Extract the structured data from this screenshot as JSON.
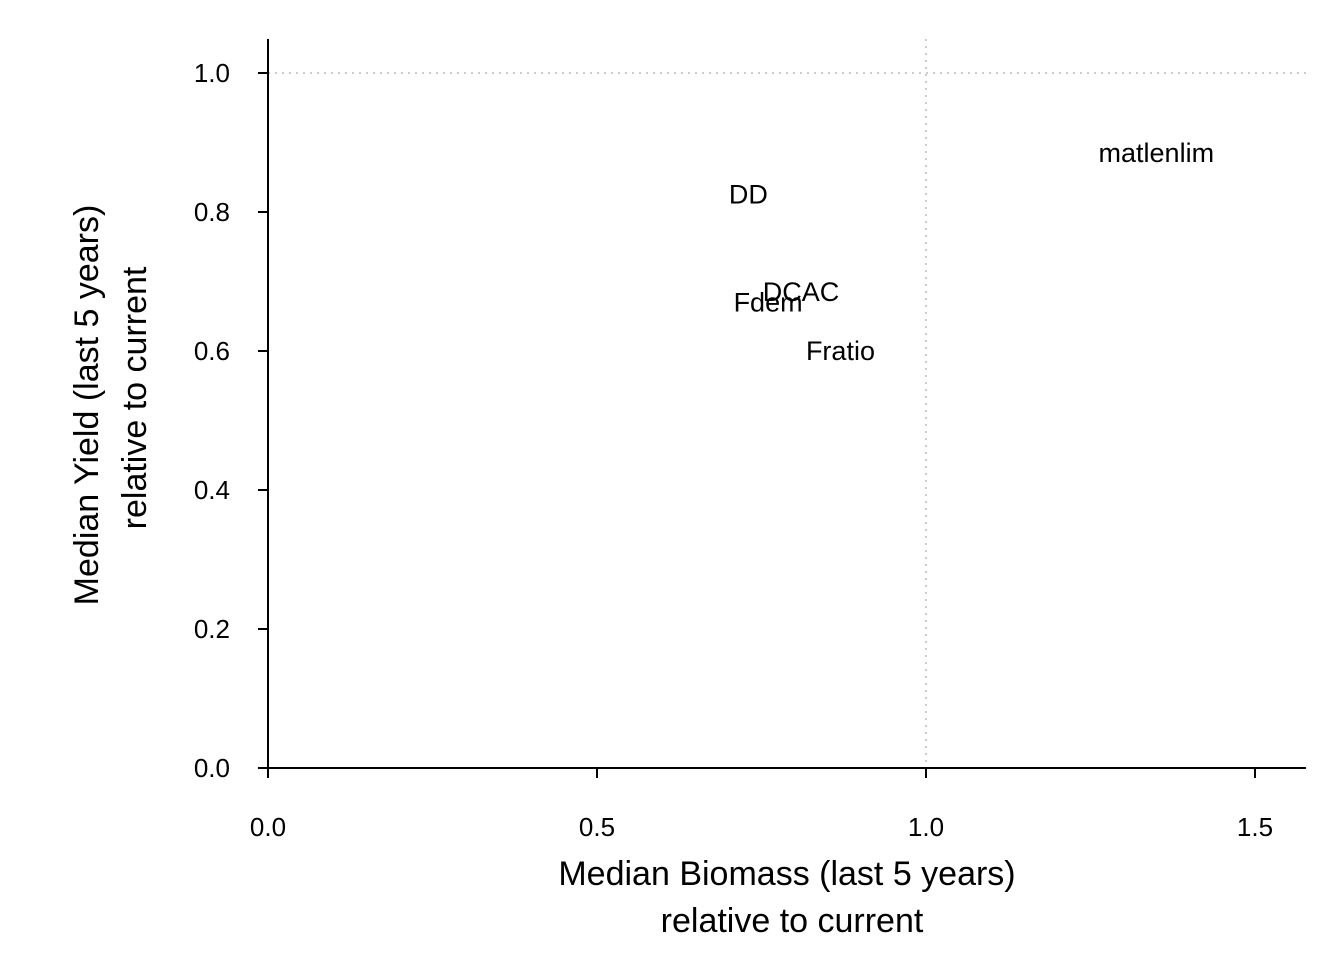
{
  "chart_data": {
    "type": "scatter",
    "title": "",
    "xlabel": [
      "Median Biomass (last 5 years)",
      "relative to current"
    ],
    "ylabel": [
      "Median Yield (last 5 years)",
      "relative to current"
    ],
    "xlim": [
      0,
      1.58
    ],
    "ylim": [
      0,
      1.05
    ],
    "xticks": [
      0.0,
      0.5,
      1.0,
      1.5
    ],
    "xtick_labels": [
      "0.0",
      "0.5",
      "1.0",
      "1.5"
    ],
    "yticks": [
      0.0,
      0.2,
      0.4,
      0.6,
      0.8,
      1.0
    ],
    "ytick_labels": [
      "0.0",
      "0.2",
      "0.4",
      "0.6",
      "0.8",
      "1.0"
    ],
    "reference_lines": {
      "x": 1.0,
      "y": 1.0,
      "style": "dotted",
      "color": "#cccccc"
    },
    "grid": false,
    "points": [
      {
        "label": "matlenlim",
        "x": 1.35,
        "y": 0.885
      },
      {
        "label": "DD",
        "x": 0.73,
        "y": 0.825
      },
      {
        "label": "DCAC",
        "x": 0.81,
        "y": 0.685
      },
      {
        "label": "Fdem",
        "x": 0.76,
        "y": 0.67
      },
      {
        "label": "Fratio",
        "x": 0.87,
        "y": 0.6
      }
    ]
  }
}
